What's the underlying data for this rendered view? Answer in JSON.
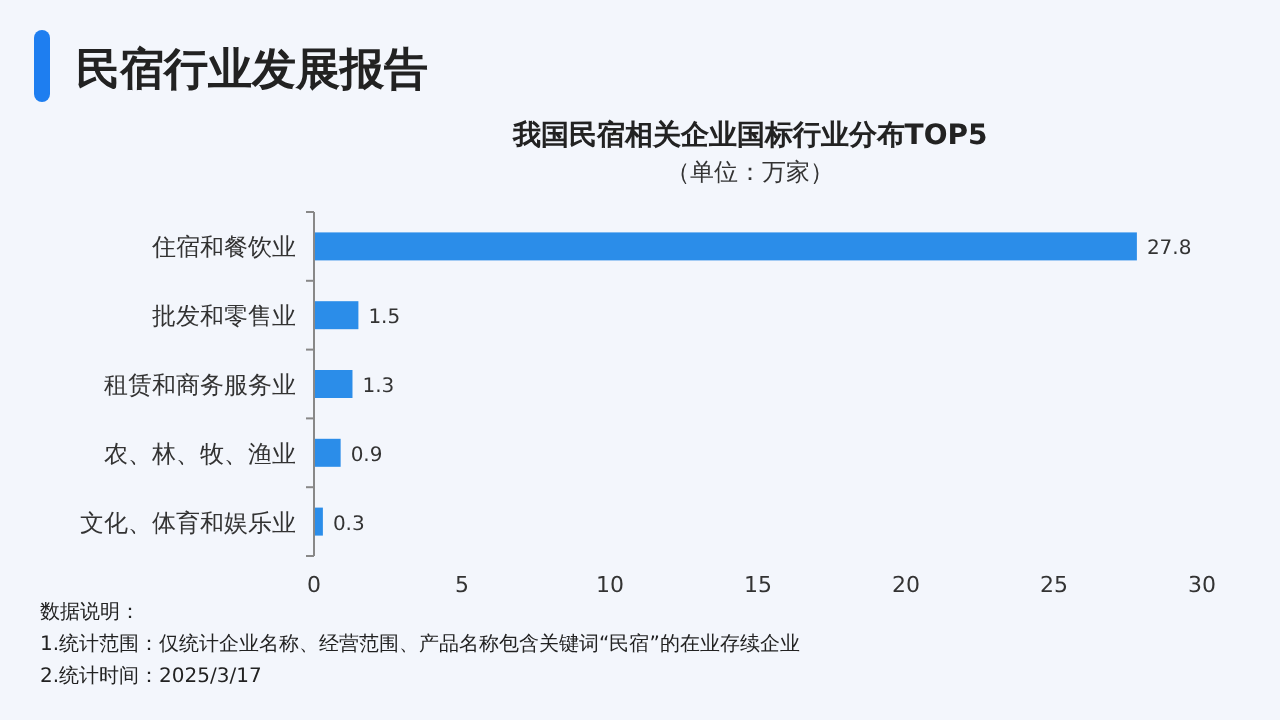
{
  "chart_data": {
    "type": "bar",
    "orientation": "horizontal",
    "title": "我国民宿相关企业国标行业分布TOP5",
    "subtitle": "（单位：万家）",
    "annotations": [
      "民宿行业发展报告",
      "数据说明：",
      "1.统计范围：仅统计企业名称、经营范围、产品名称包含关键词“民宿”的在业存续企业",
      "2.统计时间：2025/3/17"
    ],
    "categories": [
      "住宿和餐饮业",
      "批发和零售业",
      "租赁和商务服务业",
      "农、林、牧、渔业",
      "文化、体育和娱乐业"
    ],
    "values": [
      27.8,
      1.5,
      1.3,
      0.9,
      0.3
    ],
    "color": "#2b8de9",
    "data_labels": true,
    "xlim": [
      0,
      30
    ],
    "xticks": [
      0,
      5,
      10,
      15,
      20,
      25,
      30
    ],
    "grid": false
  }
}
